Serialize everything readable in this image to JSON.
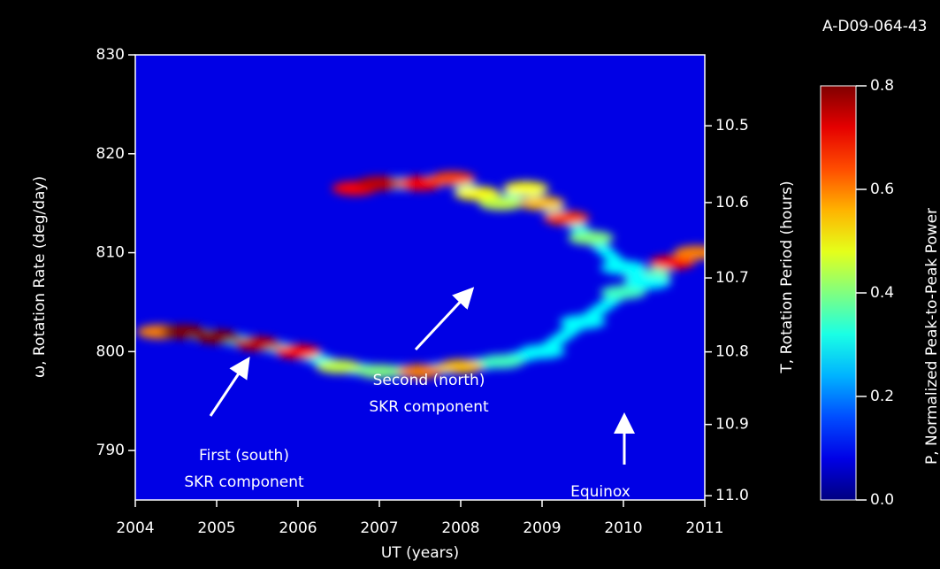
{
  "chart_data": {
    "type": "heatmap-ridges",
    "id_label": "A-D09-064-43",
    "xlabel": "UT (years)",
    "ylabel": "ω, Rotation Rate (deg/day)",
    "y2label": "T, Rotation Period (hours)",
    "colorbar_label": "P, Normalized Peak-to-Peak Power",
    "xlim": [
      2004,
      2011
    ],
    "xticks": [
      2004,
      2005,
      2006,
      2007,
      2008,
      2009,
      2010,
      2011
    ],
    "ylim": [
      785,
      830
    ],
    "yticks": [
      790,
      800,
      810,
      820,
      830
    ],
    "y2lim": [
      11.006,
      10.41
    ],
    "y2ticks": [
      {
        "value": 10.5,
        "label": "10.5"
      },
      {
        "value": 10.6,
        "label": "10.6"
      },
      {
        "value": 10.7,
        "label": "10.7"
      },
      {
        "value": 10.8,
        "label": "10.8"
      },
      {
        "value": 10.9,
        "label": "10.9"
      },
      {
        "value": 11,
        "label": "11.0"
      }
    ],
    "clim": [
      0,
      0.8
    ],
    "cticks": [
      {
        "value": 0,
        "label": "0.0"
      },
      0.2,
      0.4,
      0.6,
      0.8
    ],
    "colormap": "jet",
    "background_power": 0.08,
    "series": [
      {
        "x": [
          2004.3,
          2004.6,
          2005,
          2005.5,
          2006,
          2006.5,
          2007,
          2007.5,
          2008,
          2008.5,
          2009,
          2009.5,
          2010,
          2010.3,
          2010.6,
          2010.9
        ],
        "values": [
          802,
          802,
          801.5,
          800.8,
          800,
          798.5,
          798,
          798,
          798.5,
          799,
          800,
          803,
          806,
          807.5,
          809,
          810
        ],
        "power": [
          0.6,
          0.8,
          0.8,
          0.75,
          0.7,
          0.45,
          0.4,
          0.6,
          0.55,
          0.35,
          0.3,
          0.3,
          0.35,
          0.4,
          0.7,
          0.6
        ]
      },
      {
        "x": [
          2006.7,
          2007,
          2007.5,
          2007.9,
          2008.2,
          2008.5,
          2008.8,
          2009,
          2009.3,
          2009.6,
          2010,
          2010.3
        ],
        "values": [
          816.5,
          817,
          817,
          817.5,
          816,
          815,
          816.5,
          815,
          813.5,
          811.5,
          808.5,
          807
        ],
        "power": [
          0.7,
          0.75,
          0.7,
          0.65,
          0.5,
          0.45,
          0.5,
          0.55,
          0.65,
          0.4,
          0.3,
          0.3
        ]
      }
    ],
    "annotations": [
      [
        "Second (north)",
        "SKR component"
      ],
      [
        "First (south)",
        "SKR component"
      ],
      [
        "Equinox"
      ]
    ]
  }
}
